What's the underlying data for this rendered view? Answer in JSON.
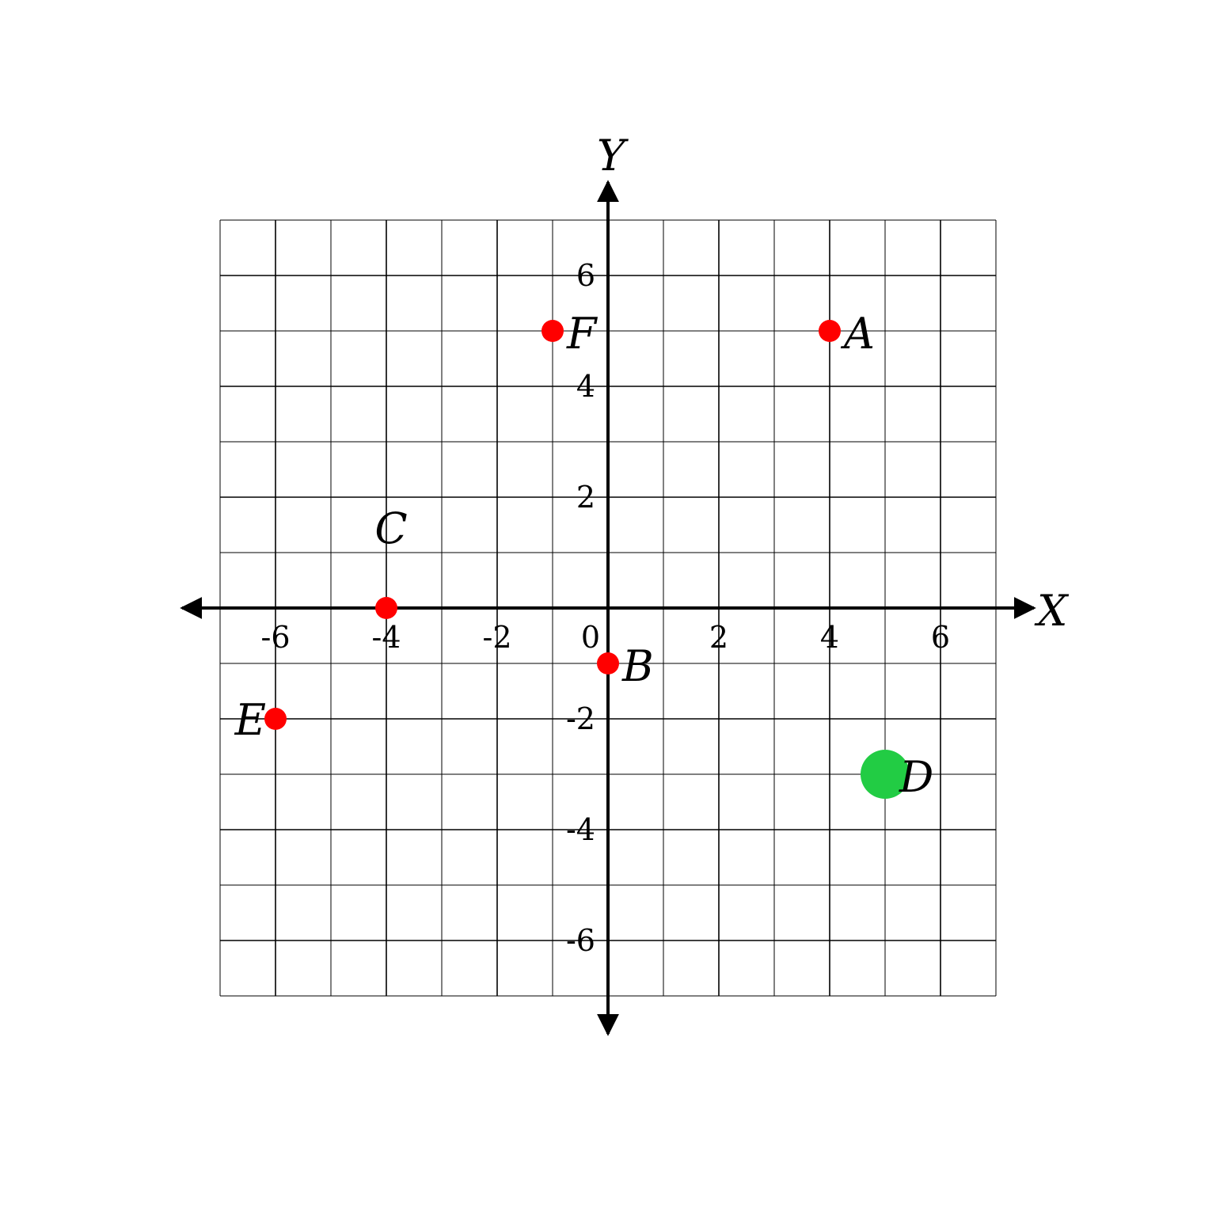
{
  "chart_data": {
    "type": "scatter",
    "title": "",
    "xlabel": "X",
    "ylabel": "Y",
    "xlim": [
      -7,
      7
    ],
    "ylim": [
      -7,
      7
    ],
    "grid": true,
    "x_ticks": [
      -6,
      -4,
      -2,
      0,
      2,
      4,
      6
    ],
    "y_ticks": [
      -6,
      -4,
      -2,
      2,
      4,
      6
    ],
    "origin_label": "0",
    "points": [
      {
        "label": "A",
        "x": 4,
        "y": 5,
        "color": "#ff0000",
        "highlight": false
      },
      {
        "label": "B",
        "x": 0,
        "y": -1,
        "color": "#ff0000",
        "highlight": false
      },
      {
        "label": "C",
        "x": -4,
        "y": 0,
        "color": "#ff0000",
        "highlight": false
      },
      {
        "label": "D",
        "x": 5,
        "y": -3,
        "color": "#22cc44",
        "highlight": true
      },
      {
        "label": "E",
        "x": -6,
        "y": -2,
        "color": "#ff0000",
        "highlight": false
      },
      {
        "label": "F",
        "x": -1,
        "y": 5,
        "color": "#ff0000",
        "highlight": false
      }
    ]
  }
}
